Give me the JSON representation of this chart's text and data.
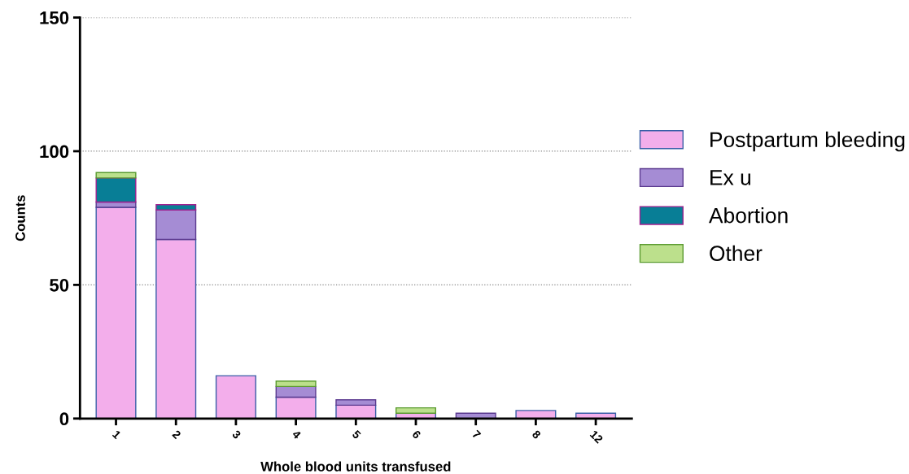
{
  "chart_data": {
    "type": "bar",
    "stacked": true,
    "xlabel": "Whole blood units transfused",
    "ylabel": "Counts",
    "categories": [
      "1",
      "2",
      "3",
      "4",
      "5",
      "6",
      "7",
      "8",
      "12"
    ],
    "series": [
      {
        "name": "Postpartum bleeding",
        "color": "#f3aeeb",
        "values": [
          79,
          67,
          16,
          8,
          5,
          2,
          0,
          3,
          2
        ]
      },
      {
        "name": "Ex u",
        "color": "#a58cd4",
        "values": [
          2,
          11,
          0,
          4,
          2,
          0,
          2,
          0,
          0
        ]
      },
      {
        "name": "Abortion",
        "color": "#087e96",
        "values": [
          9,
          2,
          0,
          0,
          0,
          0,
          0,
          0,
          0
        ]
      },
      {
        "name": "Other",
        "color": "#bce08c",
        "values": [
          2,
          0,
          0,
          2,
          0,
          2,
          0,
          0,
          0
        ]
      }
    ],
    "ylim": [
      0,
      150
    ],
    "yticks": [
      0,
      50,
      100,
      150
    ],
    "grid": "y",
    "legend": "right"
  }
}
